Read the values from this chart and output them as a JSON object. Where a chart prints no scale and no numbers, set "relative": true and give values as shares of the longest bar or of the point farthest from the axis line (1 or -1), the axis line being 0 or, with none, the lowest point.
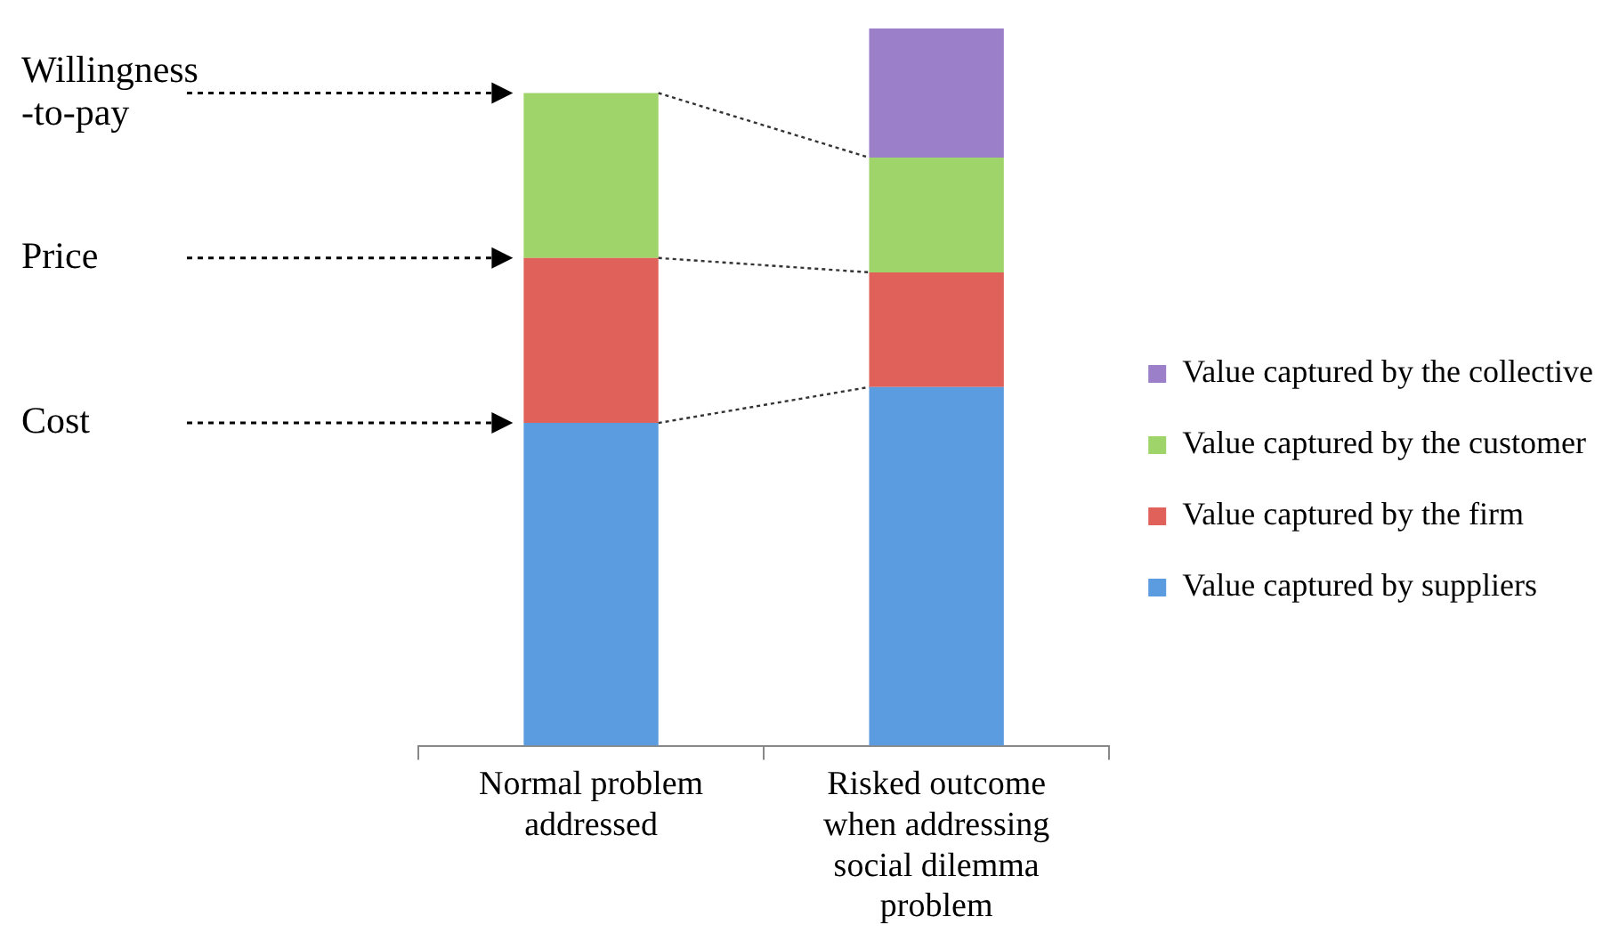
{
  "chart_data": {
    "type": "bar",
    "stacked": true,
    "relative": true,
    "legend": "right",
    "categories": [
      "Normal problem addressed",
      "Risked outcome when addressing social dilemma problem"
    ],
    "series": [
      {
        "name": "Value captured by suppliers",
        "color": "#5b9be0",
        "values": [
          0.45,
          0.5
        ]
      },
      {
        "name": "Value captured by the firm",
        "color": "#e0605a",
        "values": [
          0.23,
          0.16
        ]
      },
      {
        "name": "Value captured by the customer",
        "color": "#9fd46a",
        "values": [
          0.23,
          0.16
        ]
      },
      {
        "name": "Value captured by the collective",
        "color": "#9b7fc9",
        "values": [
          null,
          0.18
        ]
      }
    ],
    "annotations": [
      "Willingness\n-to-pay",
      "Price",
      "Cost"
    ]
  }
}
